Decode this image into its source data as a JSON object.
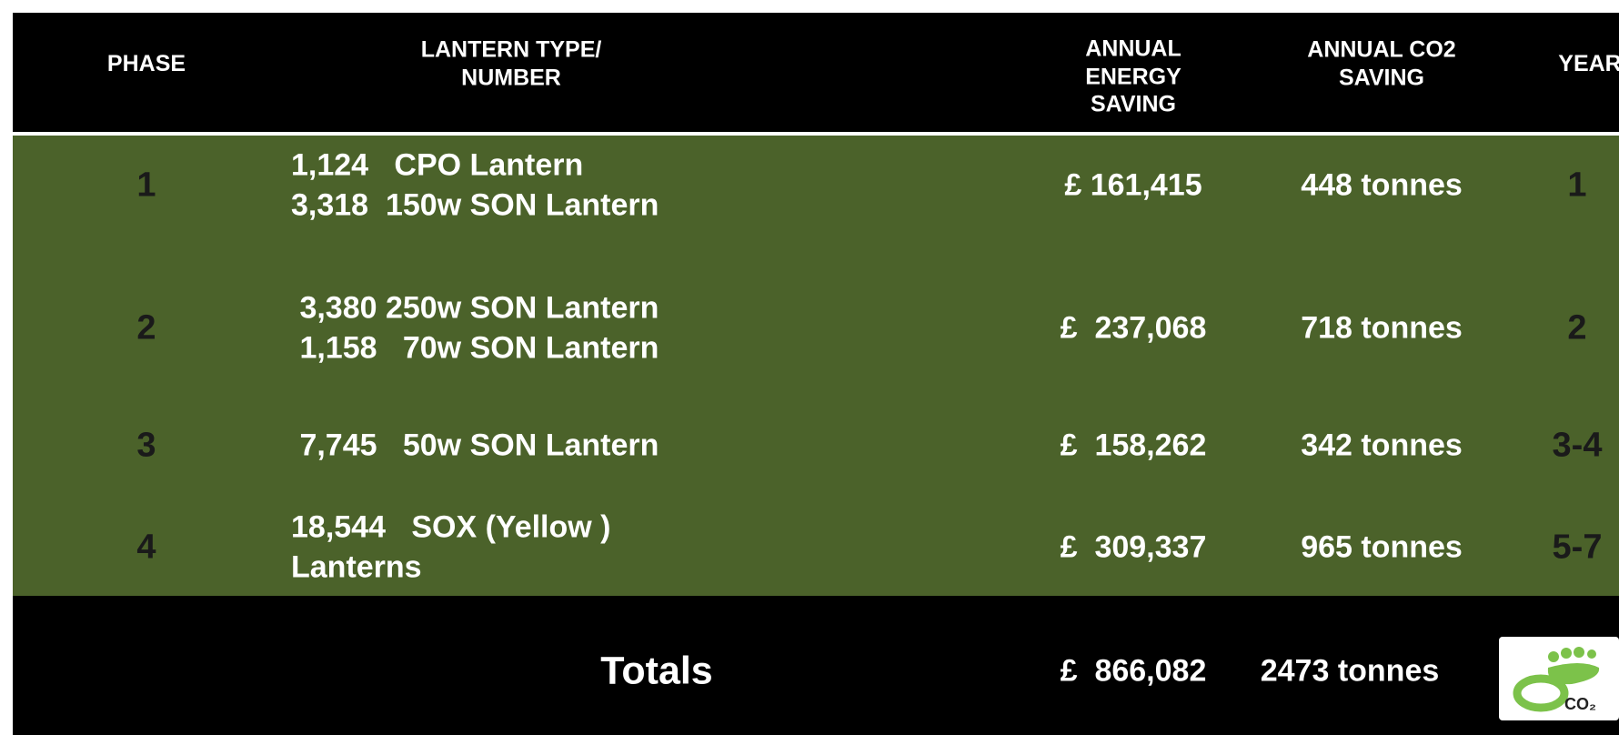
{
  "table": {
    "header": [
      "PHASE",
      "LANTERN TYPE/\nNUMBER",
      "ANNUAL\nENERGY\nSAVING",
      "ANNUAL CO2\nSAVING",
      "YEAR"
    ],
    "rows": [
      {
        "phase": "1",
        "lanterns": [
          "1,124   CPO Lantern",
          "3,318  150w SON Lantern"
        ],
        "energy": "£ 161,415",
        "co2": "448 tonnes",
        "year": "1"
      },
      {
        "phase": "2",
        "lanterns": [
          " 3,380 250w SON Lantern",
          " 1,158   70w SON Lantern"
        ],
        "energy": "£  237,068",
        "co2": "718 tonnes",
        "year": "2"
      },
      {
        "phase": "3",
        "lanterns": [
          " 7,745   50w SON Lantern"
        ],
        "energy": "£  158,262",
        "co2": "342 tonnes",
        "year": "3-4"
      },
      {
        "phase": "4",
        "lanterns": [
          "18,544   SOX (Yellow )",
          "Lanterns"
        ],
        "energy": "£  309,337",
        "co2": "965 tonnes",
        "year": "5-7"
      }
    ],
    "totals": {
      "label": "Totals",
      "energy": "£  866,082",
      "co2": "2473 tonnes",
      "icon_text": "CO₂"
    }
  }
}
